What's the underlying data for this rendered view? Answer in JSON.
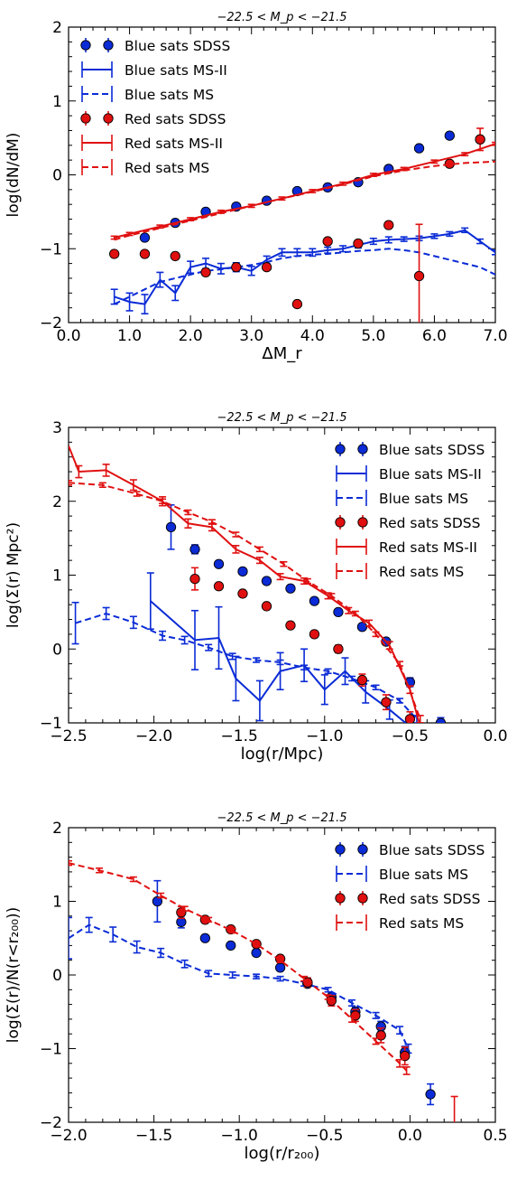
{
  "chart_data": [
    {
      "type": "scatter",
      "title": "−22.5 < M_p < −21.5",
      "xlabel": "ΔM_r",
      "ylabel": "log(dN/dM)",
      "xlim": [
        0.0,
        7.0
      ],
      "ylim": [
        -2,
        2
      ],
      "xticks": [
        0.0,
        1.0,
        2.0,
        3.0,
        4.0,
        5.0,
        6.0,
        7.0
      ],
      "xtick_labels": [
        "0.0",
        "1.0",
        "2.0",
        "3.0",
        "4.0",
        "5.0",
        "6.0",
        "7.0"
      ],
      "yticks": [
        -2,
        -1,
        0,
        1,
        2
      ],
      "ytick_labels": [
        "−2",
        "−1",
        "0",
        "1",
        "2"
      ],
      "legend": {
        "placement": "top-left",
        "entries": [
          "Blue sats SDSS",
          "Blue sats MS-II",
          "Blue sats MS",
          "Red sats SDSS",
          "Red sats MS-II",
          "Red sats MS"
        ]
      },
      "series": [
        {
          "name": "Blue sats SDSS",
          "color": "#0a2bd6",
          "style": "points",
          "x": [
            1.25,
            1.75,
            2.25,
            2.75,
            3.25,
            3.75,
            4.25,
            4.75,
            5.25,
            5.75,
            6.25,
            6.75
          ],
          "y": [
            -0.85,
            -0.65,
            -0.5,
            -0.43,
            -0.35,
            -0.22,
            -0.17,
            -0.1,
            0.08,
            0.36,
            0.53,
            0.48
          ],
          "err": [
            0,
            0,
            0,
            0,
            0,
            0,
            0,
            0,
            0,
            0,
            0,
            0
          ]
        },
        {
          "name": "Blue sats MS-II",
          "color": "#0a2bd6",
          "style": "solid",
          "x": [
            0.75,
            1.0,
            1.25,
            1.5,
            1.75,
            2.0,
            2.25,
            2.5,
            2.75,
            3.0,
            3.25,
            3.5,
            3.75,
            4.0,
            4.25,
            4.5,
            4.75,
            5.0,
            5.25,
            5.5,
            5.75,
            6.0,
            6.25,
            6.5,
            6.75,
            7.0
          ],
          "y": [
            -1.65,
            -1.72,
            -1.75,
            -1.42,
            -1.6,
            -1.25,
            -1.2,
            -1.27,
            -1.25,
            -1.3,
            -1.15,
            -1.05,
            -1.05,
            -1.05,
            -1.02,
            -1.0,
            -0.95,
            -0.9,
            -0.88,
            -0.87,
            -0.86,
            -0.83,
            -0.8,
            -0.75,
            -0.9,
            -1.05
          ],
          "err": [
            0.1,
            0.12,
            0.13,
            0.1,
            0.1,
            0.08,
            0.07,
            0.07,
            0.06,
            0.06,
            0.05,
            0.05,
            0.05,
            0.05,
            0.04,
            0.04,
            0.04,
            0.04,
            0.04,
            0.03,
            0.03,
            0.03,
            0.03,
            0.03,
            0.03,
            0.03
          ]
        },
        {
          "name": "Blue sats MS",
          "color": "#0a2bd6",
          "style": "dashed",
          "x": [
            0.75,
            1.0,
            1.25,
            1.5,
            1.75,
            2.0,
            2.25,
            2.5,
            2.75,
            3.0,
            3.25,
            3.5,
            3.75,
            4.0,
            4.25,
            4.5,
            4.75,
            5.0,
            5.25,
            5.5,
            5.75,
            6.0,
            6.25,
            6.5,
            6.75,
            7.0
          ],
          "y": [
            -1.75,
            -1.65,
            -1.55,
            -1.45,
            -1.4,
            -1.35,
            -1.3,
            -1.28,
            -1.25,
            -1.22,
            -1.18,
            -1.13,
            -1.1,
            -1.08,
            -1.07,
            -1.05,
            -1.03,
            -1.02,
            -1.0,
            -1.02,
            -1.05,
            -1.1,
            -1.15,
            -1.2,
            -1.25,
            -1.35
          ]
        },
        {
          "name": "Red sats SDSS",
          "color": "#e01010",
          "style": "points",
          "x": [
            0.75,
            1.25,
            1.75,
            2.25,
            2.75,
            3.25,
            3.75,
            4.25,
            4.75,
            5.25,
            5.75,
            6.25,
            6.75
          ],
          "y": [
            -1.07,
            -1.07,
            -1.1,
            -1.32,
            -1.25,
            -1.25,
            -1.75,
            -0.9,
            -0.93,
            -0.68,
            -1.37,
            0.15,
            0.48
          ],
          "err": [
            0,
            0,
            0,
            0,
            0,
            0,
            0,
            0,
            0,
            0,
            0.7,
            0,
            0.15
          ]
        },
        {
          "name": "Red sats MS-II",
          "color": "#e01010",
          "style": "solid",
          "x": [
            0.75,
            1.0,
            1.5,
            2.0,
            2.5,
            3.0,
            3.5,
            4.0,
            4.5,
            5.0,
            5.5,
            6.0,
            6.5,
            7.0
          ],
          "y": [
            -0.85,
            -0.8,
            -0.7,
            -0.6,
            -0.5,
            -0.42,
            -0.32,
            -0.22,
            -0.12,
            0.0,
            0.08,
            0.18,
            0.28,
            0.42
          ],
          "err": [
            0.02,
            0.02,
            0.02,
            0.02,
            0.02,
            0.02,
            0.02,
            0.02,
            0.02,
            0.02,
            0.02,
            0.02,
            0.02,
            0.02
          ]
        },
        {
          "name": "Red sats MS",
          "color": "#e01010",
          "style": "dashed",
          "x": [
            0.75,
            1.0,
            1.5,
            2.0,
            2.5,
            3.0,
            3.5,
            4.0,
            4.5,
            5.0,
            5.5,
            6.0,
            6.5,
            7.0
          ],
          "y": [
            -0.88,
            -0.82,
            -0.72,
            -0.62,
            -0.52,
            -0.42,
            -0.32,
            -0.23,
            -0.13,
            -0.02,
            0.06,
            0.12,
            0.16,
            0.18
          ]
        }
      ]
    },
    {
      "type": "scatter",
      "title": "−22.5 < M_p < −21.5",
      "xlabel": "log(r/Mpc)",
      "ylabel": "log(Σ(r) Mpc²)",
      "xlim": [
        -2.5,
        0.0
      ],
      "ylim": [
        -1,
        3
      ],
      "xticks": [
        -2.5,
        -2.0,
        -1.5,
        -1.0,
        -0.5,
        0.0
      ],
      "xtick_labels": [
        "−2.5",
        "−2.0",
        "−1.5",
        "−1.0",
        "−0.5",
        "0.0"
      ],
      "yticks": [
        -1,
        0,
        1,
        2,
        3
      ],
      "ytick_labels": [
        "−1",
        "0",
        "1",
        "2",
        "3"
      ],
      "legend": {
        "placement": "top-right",
        "entries": [
          "Blue sats SDSS",
          "Blue sats MS-II",
          "Blue sats MS",
          "Red sats SDSS",
          "Red sats MS-II",
          "Red sats MS"
        ]
      },
      "series": [
        {
          "name": "Blue sats SDSS",
          "color": "#0a2bd6",
          "style": "points",
          "x": [
            -1.9,
            -1.76,
            -1.62,
            -1.48,
            -1.34,
            -1.2,
            -1.06,
            -0.92,
            -0.78,
            -0.64,
            -0.5,
            -0.32
          ],
          "y": [
            1.65,
            1.35,
            1.15,
            1.05,
            0.92,
            0.82,
            0.65,
            0.5,
            0.3,
            0.1,
            -0.45,
            -1.0
          ],
          "err": [
            0.3,
            0.06,
            0,
            0,
            0,
            0,
            0,
            0,
            0,
            0,
            0.06,
            0.07
          ]
        },
        {
          "name": "Blue sats MS-II",
          "color": "#0a2bd6",
          "style": "solid",
          "x": [
            -2.02,
            -1.76,
            -1.62,
            -1.52,
            -1.38,
            -1.26,
            -1.12,
            -1.0,
            -0.88,
            -0.76,
            -0.62,
            -0.5
          ],
          "y": [
            0.65,
            0.12,
            0.15,
            -0.4,
            -0.7,
            -0.3,
            -0.22,
            -0.55,
            -0.3,
            -0.58,
            -0.82,
            -1.05
          ],
          "err": [
            0.38,
            0.4,
            0.42,
            0.3,
            0.27,
            0.25,
            0.22,
            0.2,
            0.18,
            0.15,
            0.13,
            0.12
          ]
        },
        {
          "name": "Blue sats MS",
          "color": "#0a2bd6",
          "style": "dashed",
          "x": [
            -2.46,
            -2.28,
            -2.12,
            -1.95,
            -1.82,
            -1.68,
            -1.54,
            -1.4,
            -1.26,
            -1.12,
            -0.98,
            -0.84,
            -0.7,
            -0.56,
            -0.46
          ],
          "y": [
            0.35,
            0.48,
            0.36,
            0.18,
            0.12,
            0.02,
            -0.1,
            -0.15,
            -0.18,
            -0.25,
            -0.3,
            -0.4,
            -0.52,
            -0.7,
            -0.95
          ],
          "err": [
            0.28,
            0.08,
            0.08,
            0.06,
            0.05,
            0.04,
            0.04,
            0.03,
            0.03,
            0.03,
            0.03,
            0.03,
            0.03,
            0.03,
            0.05
          ]
        },
        {
          "name": "Red sats SDSS",
          "color": "#e01010",
          "style": "points",
          "x": [
            -1.76,
            -1.62,
            -1.48,
            -1.34,
            -1.2,
            -1.06,
            -0.92,
            -0.78,
            -0.64,
            -0.5
          ],
          "y": [
            0.95,
            0.85,
            0.75,
            0.58,
            0.32,
            0.2,
            0.0,
            -0.42,
            -0.72,
            -0.95
          ],
          "err": [
            0.15,
            0,
            0,
            0,
            0,
            0,
            0.05,
            0.08,
            0.1,
            0.1
          ]
        },
        {
          "name": "Red sats MS-II",
          "color": "#e01010",
          "style": "solid",
          "x": [
            -2.5,
            -2.44,
            -2.28,
            -2.12,
            -1.95,
            -1.8,
            -1.66,
            -1.52,
            -1.38,
            -1.26,
            -1.12,
            -0.98,
            -0.86,
            -0.74,
            -0.62,
            -0.5,
            -0.44
          ],
          "y": [
            2.75,
            2.4,
            2.42,
            2.22,
            2.0,
            1.7,
            1.65,
            1.35,
            1.2,
            0.98,
            0.92,
            0.72,
            0.52,
            0.35,
            0.05,
            -0.55,
            -1.05
          ],
          "err": [
            0,
            0.08,
            0.08,
            0.07,
            0.06,
            0.06,
            0.05,
            0.05,
            0.04,
            0.04,
            0.04,
            0.04,
            0.04,
            0.04,
            0.05,
            0.05,
            0.05
          ]
        },
        {
          "name": "Red sats MS",
          "color": "#e01010",
          "style": "dashed",
          "x": [
            -2.5,
            -2.3,
            -2.1,
            -1.95,
            -1.8,
            -1.66,
            -1.52,
            -1.38,
            -1.24,
            -1.1,
            -0.96,
            -0.82,
            -0.7,
            -0.56,
            -0.44
          ],
          "y": [
            2.25,
            2.22,
            2.1,
            2.0,
            1.85,
            1.72,
            1.55,
            1.35,
            1.15,
            0.92,
            0.72,
            0.48,
            0.2,
            -0.2,
            -0.95
          ],
          "err": [
            0.03,
            0.03,
            0.03,
            0.03,
            0.03,
            0.03,
            0.03,
            0.03,
            0.03,
            0.03,
            0.03,
            0.03,
            0.03,
            0.03,
            0.05
          ]
        }
      ]
    },
    {
      "type": "scatter",
      "title": "−22.5 < M_p < −21.5",
      "xlabel": "log(r/r₂₀₀)",
      "ylabel": "log(Σ(r)/N(r<r₂₀₀))",
      "xlim": [
        -2.0,
        0.5
      ],
      "ylim": [
        -2,
        2
      ],
      "xticks": [
        -2.0,
        -1.5,
        -1.0,
        -0.5,
        0.0,
        0.5
      ],
      "xtick_labels": [
        "−2.0",
        "−1.5",
        "−1.0",
        "−0.5",
        "0.0",
        "0.5"
      ],
      "yticks": [
        -2,
        -1,
        0,
        1,
        2
      ],
      "ytick_labels": [
        "−2",
        "−1",
        "0",
        "1",
        "2"
      ],
      "legend": {
        "placement": "top-right",
        "entries": [
          "Blue sats SDSS",
          "Blue sats MS",
          "Red sats SDSS",
          "Red sats MS"
        ]
      },
      "series": [
        {
          "name": "Blue sats SDSS",
          "color": "#0a2bd6",
          "style": "points",
          "x": [
            -1.48,
            -1.34,
            -1.2,
            -1.05,
            -0.9,
            -0.76,
            -0.6,
            -0.46,
            -0.32,
            -0.17,
            -0.03,
            0.12
          ],
          "y": [
            1.0,
            0.72,
            0.5,
            0.4,
            0.3,
            0.1,
            -0.12,
            -0.3,
            -0.5,
            -0.7,
            -1.05,
            -1.62
          ],
          "err": [
            0.28,
            0.08,
            0,
            0,
            0,
            0,
            0,
            0.05,
            0.06,
            0.07,
            0.08,
            0.14
          ]
        },
        {
          "name": "Blue sats MS",
          "color": "#0a2bd6",
          "style": "dashed",
          "x": [
            -2.0,
            -1.88,
            -1.74,
            -1.6,
            -1.46,
            -1.32,
            -1.18,
            -1.04,
            -0.9,
            -0.76,
            -0.62,
            -0.48,
            -0.34,
            -0.2,
            -0.06,
            -0.01
          ],
          "y": [
            0.5,
            0.68,
            0.55,
            0.38,
            0.3,
            0.15,
            0.02,
            0.0,
            -0.02,
            -0.05,
            -0.12,
            -0.2,
            -0.38,
            -0.55,
            -0.75,
            -1.0
          ],
          "err": [
            0.28,
            0.1,
            0.1,
            0.08,
            0.06,
            0.05,
            0.04,
            0.04,
            0.03,
            0.03,
            0.03,
            0.03,
            0.04,
            0.04,
            0.05,
            0.06
          ]
        },
        {
          "name": "Red sats SDSS",
          "color": "#e01010",
          "style": "points",
          "x": [
            -1.34,
            -1.2,
            -1.05,
            -0.9,
            -0.76,
            -0.6,
            -0.46,
            -0.32,
            -0.17,
            -0.03,
            0.26
          ],
          "y": [
            0.85,
            0.75,
            0.62,
            0.42,
            0.22,
            -0.1,
            -0.35,
            -0.55,
            -0.82,
            -1.1,
            -2.5
          ],
          "err": [
            0.08,
            0,
            0,
            0,
            0,
            0.06,
            0.07,
            0.08,
            0.1,
            0.12,
            0.85
          ]
        },
        {
          "name": "Red sats MS",
          "color": "#e01010",
          "style": "dashed",
          "x": [
            -2.0,
            -1.82,
            -1.62,
            -1.46,
            -1.32,
            -1.18,
            -1.04,
            -0.9,
            -0.76,
            -0.62,
            -0.48,
            -0.34,
            -0.2,
            -0.06,
            -0.02
          ],
          "y": [
            1.52,
            1.42,
            1.3,
            1.08,
            0.9,
            0.75,
            0.6,
            0.42,
            0.2,
            -0.05,
            -0.3,
            -0.6,
            -0.9,
            -1.2,
            -1.3
          ],
          "err": [
            0.03,
            0.03,
            0.03,
            0.03,
            0.03,
            0.03,
            0.03,
            0.03,
            0.03,
            0.03,
            0.03,
            0.04,
            0.04,
            0.05,
            0.05
          ]
        }
      ]
    }
  ]
}
